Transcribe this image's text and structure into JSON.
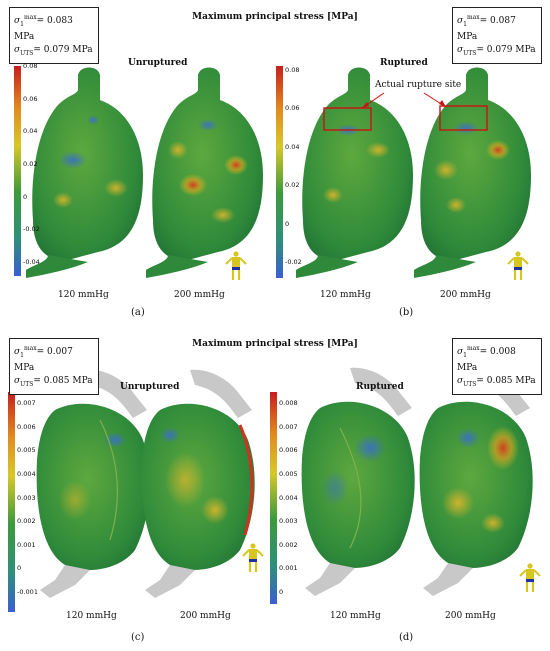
{
  "top": {
    "title": "Maximum principal stress [MPa]",
    "a": {
      "box": {
        "smax_value": "= 0.083 MPa",
        "suts_value": "= 0.079 MPa"
      },
      "condition": "Unruptured",
      "colorbar_ticks": [
        "0.08",
        "0.06",
        "0.04",
        "0.02",
        "0",
        "-0.02",
        "-0.04"
      ],
      "pressures": [
        "120 mmHg",
        "200 mmHg"
      ],
      "label": "(a)"
    },
    "b": {
      "box": {
        "smax_value": "= 0.087 MPa",
        "suts_value": "= 0.079 MPa"
      },
      "condition": "Ruptured",
      "annotation": "Actual rupture site",
      "colorbar_ticks": [
        "0.08",
        "0.06",
        "0.04",
        "0.02",
        "0",
        "-0.02"
      ],
      "pressures": [
        "120 mmHg",
        "200 mmHg"
      ],
      "label": "(b)"
    }
  },
  "bottom": {
    "title": "Maximum principal stress [MPa]",
    "c": {
      "box": {
        "smax_value": "= 0.007 MPa",
        "suts_value": "= 0.085 MPa"
      },
      "condition": "Unruptured",
      "colorbar_ticks": [
        "0.007",
        "0.006",
        "0.005",
        "0.004",
        "0.003",
        "0.002",
        "0.001",
        "0",
        "-0.001"
      ],
      "pressures": [
        "120 mmHg",
        "200 mmHg"
      ],
      "label": "(c)"
    },
    "d": {
      "box": {
        "smax_value": "= 0.008 MPa",
        "suts_value": "= 0.085 MPa"
      },
      "condition": "Ruptured",
      "colorbar_ticks": [
        "0.008",
        "0.007",
        "0.006",
        "0.005",
        "0.004",
        "0.003",
        "0.002",
        "0.001",
        "0"
      ],
      "pressures": [
        "120 mmHg",
        "200 mmHg"
      ],
      "label": "(d)"
    }
  },
  "symbols": {
    "sigma": "σ",
    "sub_one": "1",
    "sup_max": "max",
    "sub_uts": "UTS"
  },
  "colors": {
    "low": "#3a5fcd",
    "mid": "#2e8b3a",
    "high_mid": "#d4b01e",
    "high": "#d02020",
    "annotation": "#cc1111",
    "wall_grey": "#c8c8c8"
  }
}
